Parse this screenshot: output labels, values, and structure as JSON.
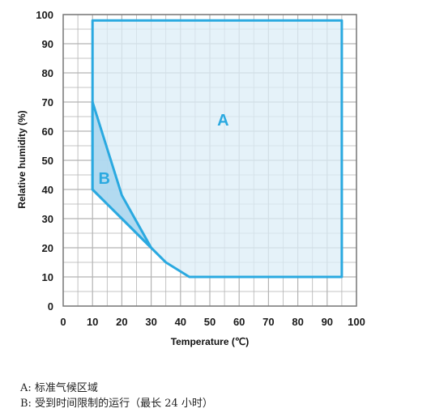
{
  "chart_data": {
    "type": "area",
    "xlabel": "Temperature (℃)",
    "ylabel": "Relative humidity (%)",
    "xlim": [
      0,
      100
    ],
    "ylim": [
      0,
      100
    ],
    "x_ticks": [
      "0",
      "10",
      "20",
      "30",
      "40",
      "50",
      "60",
      "70",
      "80",
      "90",
      "100"
    ],
    "y_ticks": [
      "0",
      "10",
      "20",
      "30",
      "40",
      "50",
      "60",
      "70",
      "80",
      "90",
      "100"
    ],
    "grid": true,
    "series": [
      {
        "name": "A",
        "points": [
          [
            10,
            98
          ],
          [
            95,
            98
          ],
          [
            95,
            10
          ],
          [
            43,
            10
          ],
          [
            35,
            15
          ],
          [
            30,
            20
          ],
          [
            20,
            30
          ],
          [
            10,
            40
          ],
          [
            10,
            98
          ]
        ]
      },
      {
        "name": "B",
        "points": [
          [
            10,
            70
          ],
          [
            20,
            38
          ],
          [
            30,
            20
          ],
          [
            20,
            30
          ],
          [
            10,
            40
          ],
          [
            10,
            70
          ]
        ]
      }
    ],
    "colors": {
      "line": "#2aa9e0",
      "fill_a": "#dcedf7",
      "fill_b": "#a9d6ef",
      "grid": "#b3b3b3"
    }
  },
  "legend_notes": [
    "A: 标准气候区域",
    "B: 受到时间限制的运行（最长 24 小时）"
  ]
}
